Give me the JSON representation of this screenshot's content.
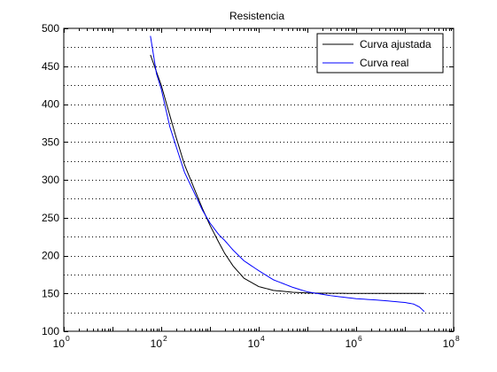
{
  "chart_data": {
    "type": "line",
    "title": "Resistencia",
    "xlabel": "",
    "ylabel": "",
    "xscale": "log",
    "xlim": [
      1,
      100000000
    ],
    "ylim": [
      100,
      500
    ],
    "x_ticks": [
      {
        "base": "10",
        "exp": "0",
        "value": 1
      },
      {
        "base": "10",
        "exp": "2",
        "value": 100
      },
      {
        "base": "10",
        "exp": "4",
        "value": 10000
      },
      {
        "base": "10",
        "exp": "6",
        "value": 1000000
      },
      {
        "base": "10",
        "exp": "8",
        "value": 100000000
      }
    ],
    "y_ticks": [
      "100",
      "150",
      "200",
      "250",
      "300",
      "350",
      "400",
      "450",
      "500"
    ],
    "grid": "horizontal dotted lines every 25 units",
    "grid_y": [
      125,
      150,
      175,
      200,
      225,
      250,
      275,
      300,
      325,
      350,
      375,
      400,
      425,
      450,
      475
    ],
    "legend": {
      "position": "top-right"
    },
    "series": [
      {
        "name": "Curva ajustada",
        "color": "#000000",
        "x": [
          60,
          100,
          150,
          200,
          300,
          500,
          700,
          1000,
          1500,
          2000,
          3000,
          5000,
          10000,
          20000,
          50000,
          100000,
          300000,
          1000000,
          3000000,
          10000000,
          25000000
        ],
        "y": [
          465,
          425,
          385,
          357,
          320,
          285,
          262,
          240,
          218,
          203,
          186,
          170,
          159,
          154,
          151.5,
          150.5,
          150.2,
          150,
          150,
          150,
          150
        ]
      },
      {
        "name": "Curva real",
        "color": "#0000ff",
        "x": [
          60,
          80,
          100,
          150,
          200,
          300,
          500,
          700,
          1000,
          1500,
          2000,
          3000,
          5000,
          10000,
          20000,
          50000,
          100000,
          300000,
          1000000,
          3000000,
          10000000,
          15000000,
          20000000,
          25000000
        ],
        "y": [
          490,
          440,
          420,
          370,
          345,
          310,
          280,
          260,
          243,
          228,
          220,
          207,
          193,
          180,
          168,
          158,
          152,
          147,
          143,
          141,
          138,
          136,
          132,
          126
        ]
      }
    ]
  }
}
